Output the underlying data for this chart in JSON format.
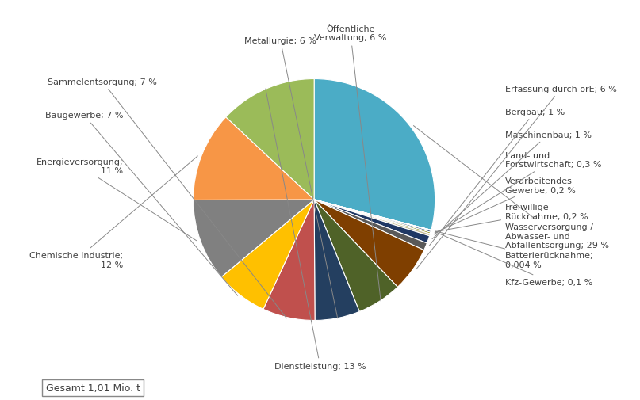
{
  "labels": [
    "Wasserversorgung /\nAbwasser- und\nAbfallentsorgung; 29 %",
    "Batterierücknahme;\n0,004 %",
    "Kfz-Gewerbe; 0,1 %",
    "Freiwillige\nRücknahme; 0,2 %",
    "Verarbeitendes\nGewerbe; 0,2 %",
    "Land- und\nForstwirtschaft; 0,3 %",
    "Maschinenbau; 1 %",
    "Bergbau; 1 %",
    "Erfassung durch örE; 6 %",
    "Öffentliche\nVerwaltung; 6 %",
    "Metallurgie; 6 %",
    "Sammelentsorgung; 7 %",
    "Baugewerbe; 7 %",
    "Energieversorgung;\n11 %",
    "Chemische Industrie;\n12 %",
    "Dienstleistung; 13 %"
  ],
  "values": [
    29,
    0.004,
    0.1,
    0.2,
    0.2,
    0.3,
    1,
    1,
    6,
    6,
    6,
    7,
    7,
    11,
    12,
    13
  ],
  "colors": [
    "#4bacc6",
    "#1a1a1a",
    "#bfbfbf",
    "#17375e",
    "#7f7f00",
    "#c4bd97",
    "#1f3864",
    "#595959",
    "#7f3f00",
    "#4f6228",
    "#243f60",
    "#c0504d",
    "#ffc000",
    "#808080",
    "#f79646",
    "#9bbb59"
  ],
  "startangle": 90,
  "total_label": "Gesamt 1,01 Mio. t",
  "background_color": "#ffffff",
  "label_fontsize": 8.0,
  "figsize": [
    8.07,
    5.06
  ],
  "dpi": 100,
  "label_positions": [
    [
      1.58,
      -0.3,
      "left",
      "center"
    ],
    [
      1.58,
      -0.5,
      "left",
      "center"
    ],
    [
      1.58,
      -0.68,
      "left",
      "center"
    ],
    [
      1.58,
      -0.1,
      "left",
      "center"
    ],
    [
      1.58,
      0.12,
      "left",
      "center"
    ],
    [
      1.58,
      0.33,
      "left",
      "center"
    ],
    [
      1.58,
      0.54,
      "left",
      "center"
    ],
    [
      1.58,
      0.73,
      "left",
      "center"
    ],
    [
      1.58,
      0.92,
      "left",
      "center"
    ],
    [
      0.3,
      1.38,
      "center",
      "center"
    ],
    [
      -0.28,
      1.32,
      "center",
      "center"
    ],
    [
      -1.3,
      0.98,
      "right",
      "center"
    ],
    [
      -1.58,
      0.7,
      "right",
      "center"
    ],
    [
      -1.58,
      0.28,
      "right",
      "center"
    ],
    [
      -1.58,
      -0.5,
      "right",
      "center"
    ],
    [
      0.05,
      -1.38,
      "center",
      "center"
    ]
  ]
}
